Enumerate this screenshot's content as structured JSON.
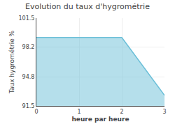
{
  "chart_data": {
    "type": "area",
    "title": "Evolution du taux d'hygrométrie",
    "xlabel": "heure par heure",
    "ylabel": "Taux hygrométrie %",
    "x": [
      0,
      1,
      2,
      3
    ],
    "values": [
      99.3,
      99.3,
      99.3,
      92.7
    ],
    "color": "#6bbfd8",
    "xlim": [
      0,
      3
    ],
    "xticks": [
      0,
      1,
      2,
      3
    ],
    "ylim": [
      91.5,
      101.5
    ],
    "yticks": [
      91.5,
      94.8,
      98.2,
      101.5
    ],
    "grid": true
  }
}
